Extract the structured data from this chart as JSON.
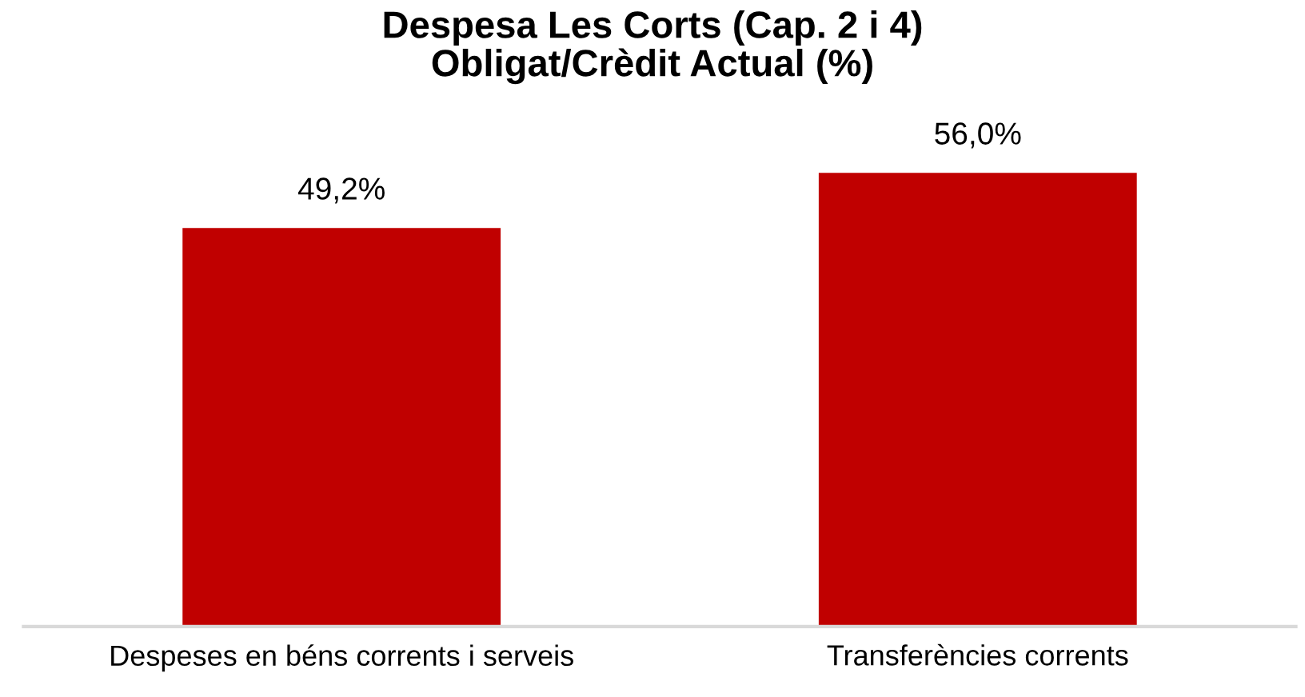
{
  "chart_data": {
    "type": "bar",
    "title": "Despesa Les Corts (Cap. 2 i 4)\nObligat/Crèdit Actual (%)",
    "categories": [
      "Despeses en béns corrents i serveis",
      "Transferències corrents"
    ],
    "values": [
      49.2,
      56.0
    ],
    "value_labels": [
      "49,2%",
      "56,0%"
    ],
    "color": "#c00000",
    "tick_labels": "x",
    "grid": false,
    "legend": false
  }
}
